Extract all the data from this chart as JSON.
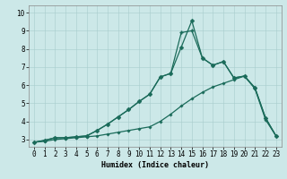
{
  "xlabel": "Humidex (Indice chaleur)",
  "bg_color": "#cce8e8",
  "line_color": "#1a6b5a",
  "xlim": [
    -0.5,
    23.5
  ],
  "ylim": [
    2.6,
    10.4
  ],
  "xticks": [
    0,
    1,
    2,
    3,
    4,
    5,
    6,
    7,
    8,
    9,
    10,
    11,
    12,
    13,
    14,
    15,
    16,
    17,
    18,
    19,
    20,
    21,
    22,
    23
  ],
  "yticks": [
    3,
    4,
    5,
    6,
    7,
    8,
    9,
    10
  ],
  "line1_x": [
    0,
    1,
    2,
    3,
    4,
    5,
    6,
    7,
    8,
    9,
    10,
    11,
    12,
    13,
    14,
    15,
    16,
    17,
    18,
    19,
    20,
    21,
    22,
    23
  ],
  "line1_y": [
    2.85,
    2.95,
    3.1,
    3.1,
    3.15,
    3.2,
    3.5,
    3.85,
    4.25,
    4.65,
    5.1,
    5.5,
    6.45,
    6.65,
    8.1,
    9.55,
    7.5,
    7.1,
    7.3,
    6.4,
    6.5,
    5.85,
    4.2,
    3.2
  ],
  "line2_x": [
    0,
    1,
    2,
    3,
    4,
    5,
    6,
    7,
    8,
    9,
    10,
    11,
    12,
    13,
    14,
    15,
    16,
    17,
    18,
    19,
    20,
    21,
    22,
    23
  ],
  "line2_y": [
    2.85,
    2.95,
    3.1,
    3.1,
    3.15,
    3.2,
    3.5,
    3.85,
    4.25,
    4.65,
    5.1,
    5.5,
    6.45,
    6.65,
    8.9,
    9.0,
    7.5,
    7.1,
    7.3,
    6.4,
    6.5,
    5.85,
    4.2,
    3.2
  ],
  "line3_x": [
    0,
    1,
    2,
    3,
    4,
    5,
    6,
    7,
    8,
    9,
    10,
    11,
    12,
    13,
    14,
    15,
    16,
    17,
    18,
    19,
    20,
    21,
    22,
    23
  ],
  "line3_y": [
    2.85,
    2.9,
    3.0,
    3.05,
    3.1,
    3.15,
    3.2,
    3.3,
    3.4,
    3.5,
    3.6,
    3.7,
    4.0,
    4.4,
    4.85,
    5.25,
    5.6,
    5.9,
    6.1,
    6.3,
    6.5,
    5.8,
    4.1,
    3.2
  ],
  "marker_size": 2.5,
  "linewidth": 0.9,
  "xlabel_fontsize": 6,
  "tick_fontsize": 5.5
}
